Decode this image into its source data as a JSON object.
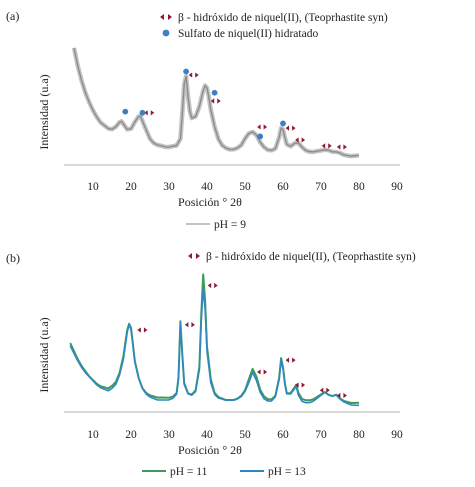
{
  "chart_data": [
    {
      "type": "line",
      "panel_label": "(a)",
      "xlabel": "Posición ° 2θ",
      "ylabel": "Intensidad (u.a)",
      "xlim": [
        0,
        90
      ],
      "xticks": [
        10,
        20,
        30,
        40,
        50,
        60,
        70,
        80,
        90
      ],
      "yticks_shown": false,
      "grid": false,
      "legend_position": "bottom",
      "marker_legend_position": "top-right",
      "colors": {
        "pH9": "#8a8a8a",
        "beta_marker": "#8e1b33",
        "sulfate_marker": "#3f7fc0"
      },
      "series": [
        {
          "name": "pH = 9",
          "x": [
            5,
            6,
            7,
            8,
            9,
            10,
            11,
            12,
            13,
            14,
            15,
            16,
            17,
            17.5,
            18,
            19,
            20,
            21,
            22,
            22.5,
            23,
            24,
            25,
            26,
            27,
            28,
            29,
            30,
            31,
            32,
            33,
            33.5,
            34,
            34.5,
            35,
            35.5,
            36,
            37,
            38,
            39,
            39.5,
            40,
            40.5,
            41,
            42,
            43,
            44,
            45,
            46,
            47,
            48,
            49,
            50,
            51,
            52,
            53,
            54,
            55,
            56,
            57,
            58,
            59,
            59.5,
            60,
            60.5,
            61,
            62,
            63,
            64,
            65,
            66,
            67,
            68,
            69,
            70,
            71,
            72,
            73,
            74,
            75,
            76,
            77,
            78,
            79,
            80
          ],
          "y": [
            95,
            80,
            68,
            58,
            50,
            43,
            37,
            32,
            29,
            26,
            25,
            27,
            31,
            32,
            30,
            26,
            27,
            33,
            38,
            38,
            34,
            26,
            18,
            14,
            12,
            11,
            10,
            10,
            11,
            12,
            18,
            40,
            65,
            72,
            55,
            42,
            36,
            37,
            45,
            58,
            62,
            60,
            52,
            42,
            28,
            18,
            13,
            11,
            10,
            10,
            11,
            13,
            18,
            22,
            23,
            20,
            14,
            10,
            8,
            8,
            10,
            20,
            28,
            27,
            20,
            14,
            12,
            14,
            14,
            10,
            7,
            6,
            6,
            7,
            8,
            9,
            9,
            8,
            8,
            7,
            5,
            4,
            3,
            3,
            3
          ]
        }
      ],
      "marker_legend": [
        {
          "label": "β - hidróxido de niquel(II), (Teoprhastite syn)",
          "symbol": "diamond-arrow",
          "color": "#8e1b33"
        },
        {
          "label": "Sulfato de niquel(II) hidratado",
          "symbol": "dot",
          "color": "#3f7fc0"
        }
      ],
      "markers": [
        {
          "type": "beta",
          "x": 24.8,
          "y": 40
        },
        {
          "type": "sulfate",
          "x": 18.5,
          "y": 41
        },
        {
          "type": "sulfate",
          "x": 23,
          "y": 40
        },
        {
          "type": "sulfate",
          "x": 34.5,
          "y": 75
        },
        {
          "type": "beta",
          "x": 36.5,
          "y": 72
        },
        {
          "type": "sulfate",
          "x": 42,
          "y": 57
        },
        {
          "type": "beta",
          "x": 42.3,
          "y": 50
        },
        {
          "type": "beta",
          "x": 54.5,
          "y": 28
        },
        {
          "type": "sulfate",
          "x": 54,
          "y": 20
        },
        {
          "type": "sulfate",
          "x": 60,
          "y": 31
        },
        {
          "type": "beta",
          "x": 62,
          "y": 27
        },
        {
          "type": "beta",
          "x": 64.5,
          "y": 17
        },
        {
          "type": "beta",
          "x": 71.5,
          "y": 12
        },
        {
          "type": "beta",
          "x": 75.5,
          "y": 11
        }
      ]
    },
    {
      "type": "line",
      "panel_label": "(b)",
      "xlabel": "Posición ° 2θ",
      "ylabel": "Intensidad (u.a)",
      "xlim": [
        0,
        90
      ],
      "xticks": [
        10,
        20,
        30,
        40,
        50,
        60,
        70,
        80,
        90
      ],
      "yticks_shown": false,
      "grid": false,
      "legend_position": "bottom",
      "marker_legend_position": "top-right",
      "colors": {
        "pH11": "#3c9a5a",
        "pH13": "#2f88c4",
        "beta_marker": "#8e1b33"
      },
      "series": [
        {
          "name": "pH = 11",
          "x": [
            4,
            5,
            6,
            7,
            8,
            9,
            10,
            11,
            12,
            13,
            14,
            15,
            16,
            17,
            18,
            19,
            19.5,
            20,
            20.5,
            21,
            22,
            23,
            24,
            25,
            26,
            27,
            28,
            29,
            30,
            31,
            32,
            32.5,
            33,
            33.5,
            34,
            35,
            36,
            37,
            38,
            38.5,
            39,
            39.5,
            40,
            41,
            42,
            43,
            44,
            45,
            46,
            47,
            48,
            49,
            50,
            51,
            52,
            53,
            54,
            55,
            56,
            57,
            58,
            59,
            59.5,
            60,
            60.5,
            61,
            62,
            63,
            63.5,
            64,
            65,
            66,
            67,
            68,
            69,
            70,
            71,
            72,
            73,
            74,
            75,
            76,
            77,
            78,
            79,
            80
          ],
          "y": [
            48,
            42,
            36,
            31,
            27,
            23,
            20,
            17,
            15,
            14,
            13,
            15,
            18,
            25,
            38,
            58,
            63,
            60,
            48,
            35,
            22,
            14,
            10,
            8,
            7,
            6,
            6,
            6,
            6,
            7,
            10,
            22,
            65,
            40,
            18,
            10,
            9,
            12,
            30,
            70,
            100,
            80,
            45,
            20,
            10,
            7,
            6,
            5,
            5,
            5,
            6,
            8,
            12,
            20,
            28,
            22,
            12,
            7,
            5,
            5,
            8,
            22,
            37,
            30,
            18,
            10,
            10,
            14,
            16,
            10,
            5,
            4,
            4,
            5,
            7,
            9,
            11,
            9,
            8,
            9,
            6,
            4,
            3,
            2,
            2,
            2
          ]
        },
        {
          "name": "pH = 13",
          "x": [
            4,
            5,
            6,
            7,
            8,
            9,
            10,
            11,
            12,
            13,
            14,
            15,
            16,
            17,
            18,
            19,
            19.5,
            20,
            20.5,
            21,
            22,
            23,
            24,
            25,
            26,
            27,
            28,
            29,
            30,
            31,
            32,
            32.5,
            33,
            33.5,
            34,
            35,
            36,
            37,
            38,
            38.5,
            39,
            39.5,
            40,
            41,
            42,
            43,
            44,
            45,
            46,
            47,
            48,
            49,
            50,
            51,
            52,
            53,
            54,
            55,
            56,
            57,
            58,
            59,
            59.5,
            60,
            60.5,
            61,
            62,
            63,
            63.5,
            64,
            65,
            66,
            67,
            68,
            69,
            70,
            71,
            72,
            73,
            74,
            75,
            76,
            77,
            78,
            79,
            80
          ],
          "y": [
            46,
            40,
            34,
            29,
            25,
            22,
            19,
            16,
            14,
            13,
            12,
            14,
            17,
            24,
            36,
            56,
            62,
            58,
            46,
            33,
            21,
            13,
            9,
            7,
            6,
            5,
            5,
            5,
            5,
            6,
            9,
            20,
            63,
            38,
            16,
            9,
            8,
            11,
            28,
            66,
            90,
            75,
            42,
            18,
            9,
            6,
            5,
            4,
            4,
            4,
            5,
            7,
            11,
            18,
            26,
            20,
            11,
            6,
            4,
            4,
            7,
            20,
            35,
            28,
            16,
            9,
            9,
            13,
            15,
            9,
            4,
            3,
            3,
            4,
            6,
            8,
            10,
            8,
            7,
            8,
            5,
            3,
            2,
            1,
            1,
            1
          ]
        }
      ],
      "marker_legend": [
        {
          "label": "β - hidróxido de niquel(II), (Teoprhastite syn)",
          "symbol": "diamond-arrow",
          "color": "#8e1b33"
        }
      ],
      "markers": [
        {
          "type": "beta",
          "x": 23,
          "y": 58
        },
        {
          "type": "beta",
          "x": 35.5,
          "y": 62
        },
        {
          "type": "beta",
          "x": 41.5,
          "y": 92
        },
        {
          "type": "beta",
          "x": 54.5,
          "y": 26
        },
        {
          "type": "beta",
          "x": 62,
          "y": 35
        },
        {
          "type": "beta",
          "x": 64.5,
          "y": 16
        },
        {
          "type": "beta",
          "x": 71,
          "y": 12
        },
        {
          "type": "beta",
          "x": 75.5,
          "y": 8
        }
      ]
    }
  ]
}
